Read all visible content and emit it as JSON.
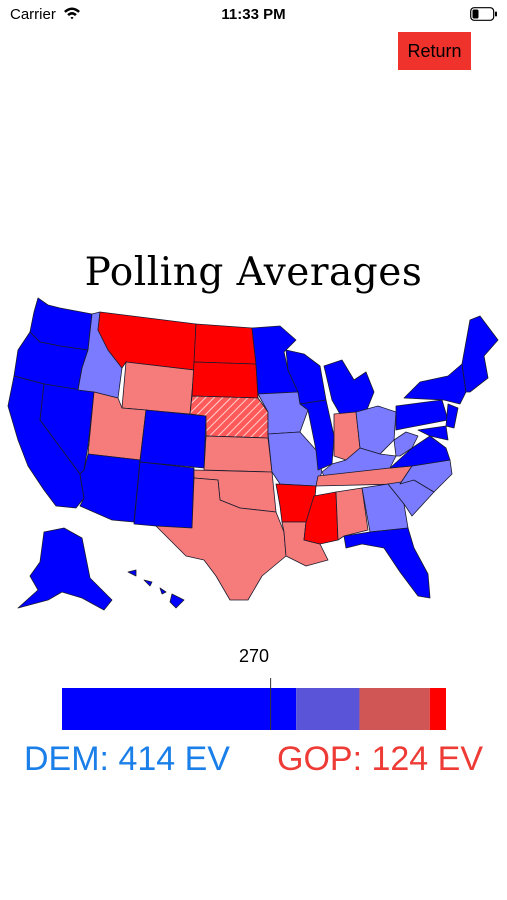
{
  "status_bar": {
    "carrier": "Carrier",
    "time": "11:33 PM",
    "wifi_icon": "wifi-icon",
    "battery_icon": "battery-icon"
  },
  "toolbar": {
    "return_label": "Return"
  },
  "title": "Polling Averages",
  "colors": {
    "safe_dem": "#0000ff",
    "lean_dem": "#7b7bff",
    "lean_gop": "#f57c7a",
    "safe_gop": "#ff0000",
    "tossup_hatch": "#f57c7a",
    "return_button": "#f0322c",
    "dem_text": "#1a7fe8",
    "gop_text": "#ee3b35"
  },
  "tally": {
    "threshold_label": "270",
    "dem_text": "DEM: 414 EV",
    "gop_text": "GOP: 124 EV"
  },
  "ev_bar": {
    "total_ev": 538,
    "threshold": 270,
    "segments": [
      {
        "name": "safe_dem",
        "ev": 303,
        "color": "#0000ff"
      },
      {
        "name": "lean_dem",
        "ev": 82,
        "color": "#5a55d8"
      },
      {
        "name": "lean_gop",
        "ev": 91,
        "color": "#d05555"
      },
      {
        "name": "safe_gop",
        "ev": 21,
        "color": "#ff0000"
      }
    ]
  }
}
